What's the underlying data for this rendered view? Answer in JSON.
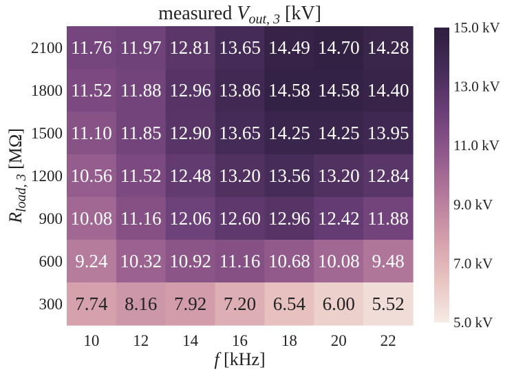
{
  "chart_data": {
    "type": "heatmap",
    "title": "measured V_out,3 [kV]",
    "title_parts": {
      "prefix": "measured ",
      "symbol": "V",
      "subscript": "out, 3",
      "suffix": " [kV]"
    },
    "xlabel": "f [kHz]",
    "xlabel_parts": {
      "symbol": "f",
      "suffix": " [kHz]"
    },
    "ylabel": "R_load,3 [MΩ]",
    "ylabel_parts": {
      "symbol": "R",
      "subscript": "load, 3",
      "suffix": " [MΩ]"
    },
    "x": [
      "10",
      "12",
      "14",
      "16",
      "18",
      "20",
      "22"
    ],
    "y": [
      "2100",
      "1800",
      "1500",
      "1200",
      "900",
      "600",
      "300"
    ],
    "values": [
      [
        11.76,
        11.97,
        12.81,
        13.65,
        14.49,
        14.7,
        14.28
      ],
      [
        11.52,
        11.88,
        12.96,
        13.86,
        14.58,
        14.58,
        14.4
      ],
      [
        11.1,
        11.85,
        12.9,
        13.65,
        14.25,
        14.25,
        13.95
      ],
      [
        10.56,
        11.52,
        12.48,
        13.2,
        13.56,
        13.2,
        12.84
      ],
      [
        10.08,
        11.16,
        12.06,
        12.6,
        12.96,
        12.42,
        11.88
      ],
      [
        9.24,
        10.32,
        10.92,
        11.16,
        10.68,
        10.08,
        9.48
      ],
      [
        7.74,
        8.16,
        7.92,
        7.2,
        6.54,
        6.0,
        5.52
      ]
    ],
    "value_labels": [
      [
        "11.76",
        "11.97",
        "12.81",
        "13.65",
        "14.49",
        "14.70",
        "14.28"
      ],
      [
        "11.52",
        "11.88",
        "12.96",
        "13.86",
        "14.58",
        "14.58",
        "14.40"
      ],
      [
        "11.10",
        "11.85",
        "12.90",
        "13.65",
        "14.25",
        "14.25",
        "13.95"
      ],
      [
        "10.56",
        "11.52",
        "12.48",
        "13.20",
        "13.56",
        "13.20",
        "12.84"
      ],
      [
        "10.08",
        "11.16",
        "12.06",
        "12.60",
        "12.96",
        "12.42",
        "11.88"
      ],
      [
        "9.24",
        "10.32",
        "10.92",
        "11.16",
        "10.68",
        "10.08",
        "9.48"
      ],
      [
        "7.74",
        "8.16",
        "7.92",
        "7.20",
        "6.54",
        "6.00",
        "5.52"
      ]
    ],
    "colorbar": {
      "range": [
        5.0,
        15.0
      ],
      "ticks": [
        5.0,
        7.0,
        9.0,
        11.0,
        13.0,
        15.0
      ],
      "tick_labels": [
        "5.0 kV",
        "7.0 kV",
        "9.0 kV",
        "11.0 kV",
        "13.0 kV",
        "15.0 kV"
      ]
    },
    "colormap": [
      "#f6ebe5",
      "#e8c4c1",
      "#d39eab",
      "#b47b9c",
      "#91598b",
      "#6b3f78",
      "#462c58",
      "#2d1e3e"
    ],
    "text_colors": {
      "dark": "#222222",
      "light": "#ffffff",
      "threshold": 8.5
    },
    "grid": false
  }
}
